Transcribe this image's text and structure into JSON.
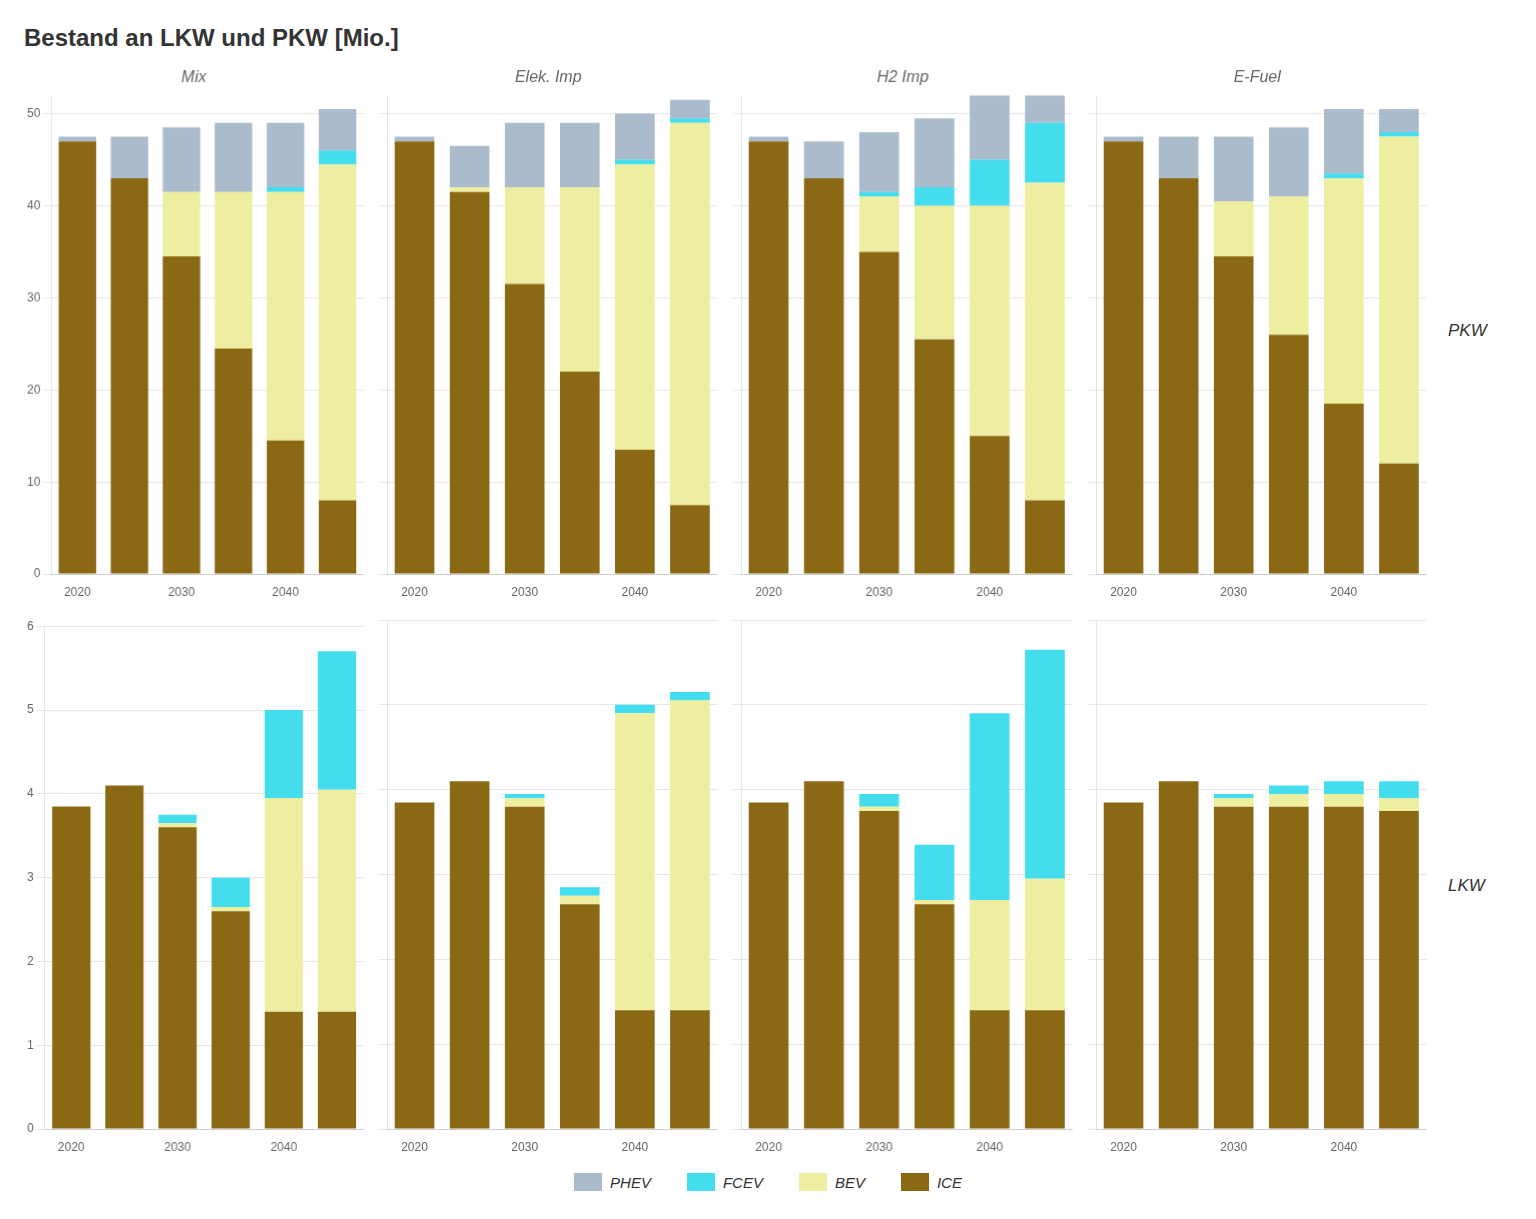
{
  "title": "Bestand an LKW und PKW [Mio.]",
  "legend": "bottom",
  "chart_data": [
    {
      "type": "bar",
      "stacked": true,
      "grid": true,
      "title": "Mix",
      "categories": [
        2020,
        null,
        2030,
        null,
        2040,
        null
      ],
      "series": [
        {
          "name": "ICE",
          "color": "#8B6914",
          "values": [
            47.0,
            43.0,
            34.5,
            24.5,
            14.5,
            8.0
          ]
        },
        {
          "name": "BEV",
          "color": "#EEEEA0",
          "values": [
            0.0,
            0.0,
            7.0,
            17.0,
            27.0,
            36.5
          ]
        },
        {
          "name": "FCEV",
          "color": "#44DDEE",
          "values": [
            0.0,
            0.0,
            0.0,
            0.0,
            0.5,
            1.5
          ]
        },
        {
          "name": "PHEV",
          "color": "#AABBCC",
          "values": [
            0.5,
            4.5,
            7.0,
            7.5,
            7.0,
            4.5
          ]
        }
      ],
      "ylim": [
        0,
        52
      ],
      "yticks": [
        0,
        10,
        20,
        30,
        40,
        50
      ]
    },
    {
      "type": "bar",
      "stacked": true,
      "grid": true,
      "title": "Elek. Imp",
      "categories": [
        2020,
        null,
        2030,
        null,
        2040,
        null
      ],
      "tick_labels": "x",
      "series": [
        {
          "name": "ICE",
          "color": "#8B6914",
          "values": [
            47.0,
            41.5,
            31.5,
            22.0,
            13.5,
            7.5
          ]
        },
        {
          "name": "BEV",
          "color": "#EEEEA0",
          "values": [
            0.0,
            0.5,
            10.5,
            20.0,
            31.0,
            41.5
          ]
        },
        {
          "name": "FCEV",
          "color": "#44DDEE",
          "values": [
            0.0,
            0.0,
            0.0,
            0.0,
            0.5,
            0.5
          ]
        },
        {
          "name": "PHEV",
          "color": "#AABBCC",
          "values": [
            0.5,
            4.5,
            7.0,
            7.0,
            5.0,
            2.0
          ]
        }
      ],
      "ylim": [
        0,
        52
      ],
      "yticks": [
        0,
        10,
        20,
        30,
        40,
        50
      ]
    },
    {
      "type": "bar",
      "stacked": true,
      "grid": true,
      "title": "H2 Imp",
      "categories": [
        2020,
        null,
        2030,
        null,
        2040,
        null
      ],
      "tick_labels": "x",
      "series": [
        {
          "name": "ICE",
          "color": "#8B6914",
          "values": [
            47.0,
            43.0,
            35.0,
            25.5,
            15.0,
            8.0
          ]
        },
        {
          "name": "BEV",
          "color": "#EEEEA0",
          "values": [
            0.0,
            0.0,
            6.0,
            14.5,
            25.0,
            34.5
          ]
        },
        {
          "name": "FCEV",
          "color": "#44DDEE",
          "values": [
            0.0,
            0.0,
            0.5,
            2.0,
            5.0,
            6.5
          ]
        },
        {
          "name": "PHEV",
          "color": "#AABBCC",
          "values": [
            0.5,
            4.0,
            6.5,
            7.5,
            7.0,
            3.0
          ]
        }
      ],
      "ylim": [
        0,
        52
      ],
      "yticks": [
        0,
        10,
        20,
        30,
        40,
        50
      ]
    },
    {
      "type": "bar",
      "stacked": true,
      "grid": true,
      "title": "E-Fuel",
      "categories": [
        2020,
        null,
        2030,
        null,
        2040,
        null
      ],
      "tick_labels": "x",
      "annotations": [
        {
          "text": "PKW"
        }
      ],
      "series": [
        {
          "name": "ICE",
          "color": "#8B6914",
          "values": [
            47.0,
            43.0,
            34.5,
            26.0,
            18.5,
            12.0
          ]
        },
        {
          "name": "BEV",
          "color": "#EEEEA0",
          "values": [
            0.0,
            0.0,
            6.0,
            15.0,
            24.5,
            35.5
          ]
        },
        {
          "name": "FCEV",
          "color": "#44DDEE",
          "values": [
            0.0,
            0.0,
            0.0,
            0.0,
            0.5,
            0.5
          ]
        },
        {
          "name": "PHEV",
          "color": "#AABBCC",
          "values": [
            0.5,
            4.5,
            7.0,
            7.5,
            7.0,
            2.5
          ]
        }
      ],
      "ylim": [
        0,
        52
      ],
      "yticks": [
        0,
        10,
        20,
        30,
        40,
        50
      ]
    },
    {
      "type": "bar",
      "stacked": true,
      "grid": true,
      "categories": [
        2020,
        null,
        2030,
        null,
        2040,
        null
      ],
      "series": [
        {
          "name": "ICE",
          "color": "#8B6914",
          "values": [
            3.85,
            4.1,
            3.6,
            2.6,
            1.4,
            1.4
          ]
        },
        {
          "name": "BEV",
          "color": "#EEEEA0",
          "values": [
            0.0,
            0.0,
            0.05,
            0.05,
            2.55,
            2.65
          ]
        },
        {
          "name": "FCEV",
          "color": "#44DDEE",
          "values": [
            0.0,
            0.0,
            0.1,
            0.35,
            1.05,
            1.65
          ]
        },
        {
          "name": "PHEV",
          "color": "#AABBCC",
          "values": [
            0.0,
            0.0,
            0.0,
            0.0,
            0.0,
            0.0
          ]
        }
      ],
      "ylim": [
        0,
        6
      ],
      "yticks": [
        0,
        1,
        2,
        3,
        4,
        5,
        6
      ]
    },
    {
      "type": "bar",
      "stacked": true,
      "grid": true,
      "categories": [
        2020,
        null,
        2030,
        null,
        2040,
        null
      ],
      "tick_labels": "x",
      "series": [
        {
          "name": "ICE",
          "color": "#8B6914",
          "values": [
            3.85,
            4.1,
            3.8,
            2.65,
            1.4,
            1.4
          ]
        },
        {
          "name": "BEV",
          "color": "#EEEEA0",
          "values": [
            0.0,
            0.0,
            0.1,
            0.1,
            3.5,
            3.65
          ]
        },
        {
          "name": "FCEV",
          "color": "#44DDEE",
          "values": [
            0.0,
            0.0,
            0.05,
            0.1,
            0.1,
            0.1
          ]
        },
        {
          "name": "PHEV",
          "color": "#AABBCC",
          "values": [
            0.0,
            0.0,
            0.0,
            0.0,
            0.0,
            0.0
          ]
        }
      ],
      "ylim": [
        0,
        6
      ],
      "yticks": [
        0,
        1,
        2,
        3,
        4,
        5,
        6
      ]
    },
    {
      "type": "bar",
      "stacked": true,
      "grid": true,
      "categories": [
        2020,
        null,
        2030,
        null,
        2040,
        null
      ],
      "tick_labels": "x",
      "series": [
        {
          "name": "ICE",
          "color": "#8B6914",
          "values": [
            3.85,
            4.1,
            3.75,
            2.65,
            1.4,
            1.4
          ]
        },
        {
          "name": "BEV",
          "color": "#EEEEA0",
          "values": [
            0.0,
            0.0,
            0.05,
            0.05,
            1.3,
            1.55
          ]
        },
        {
          "name": "FCEV",
          "color": "#44DDEE",
          "values": [
            0.0,
            0.0,
            0.15,
            0.65,
            2.2,
            2.7
          ]
        },
        {
          "name": "PHEV",
          "color": "#AABBCC",
          "values": [
            0.0,
            0.0,
            0.0,
            0.0,
            0.0,
            0.0
          ]
        }
      ],
      "ylim": [
        0,
        6
      ],
      "yticks": [
        0,
        1,
        2,
        3,
        4,
        5,
        6
      ]
    },
    {
      "type": "bar",
      "stacked": true,
      "grid": true,
      "categories": [
        2020,
        null,
        2030,
        null,
        2040,
        null
      ],
      "tick_labels": "x",
      "annotations": [
        {
          "text": "LKW"
        }
      ],
      "series": [
        {
          "name": "ICE",
          "color": "#8B6914",
          "values": [
            3.85,
            4.1,
            3.8,
            3.8,
            3.8,
            3.75
          ]
        },
        {
          "name": "BEV",
          "color": "#EEEEA0",
          "values": [
            0.0,
            0.0,
            0.1,
            0.15,
            0.15,
            0.15
          ]
        },
        {
          "name": "FCEV",
          "color": "#44DDEE",
          "values": [
            0.0,
            0.0,
            0.05,
            0.1,
            0.15,
            0.2
          ]
        },
        {
          "name": "PHEV",
          "color": "#AABBCC",
          "values": [
            0.0,
            0.0,
            0.0,
            0.0,
            0.0,
            0.0
          ]
        }
      ],
      "ylim": [
        0,
        6
      ],
      "yticks": [
        0,
        1,
        2,
        3,
        4,
        5,
        6
      ]
    }
  ]
}
